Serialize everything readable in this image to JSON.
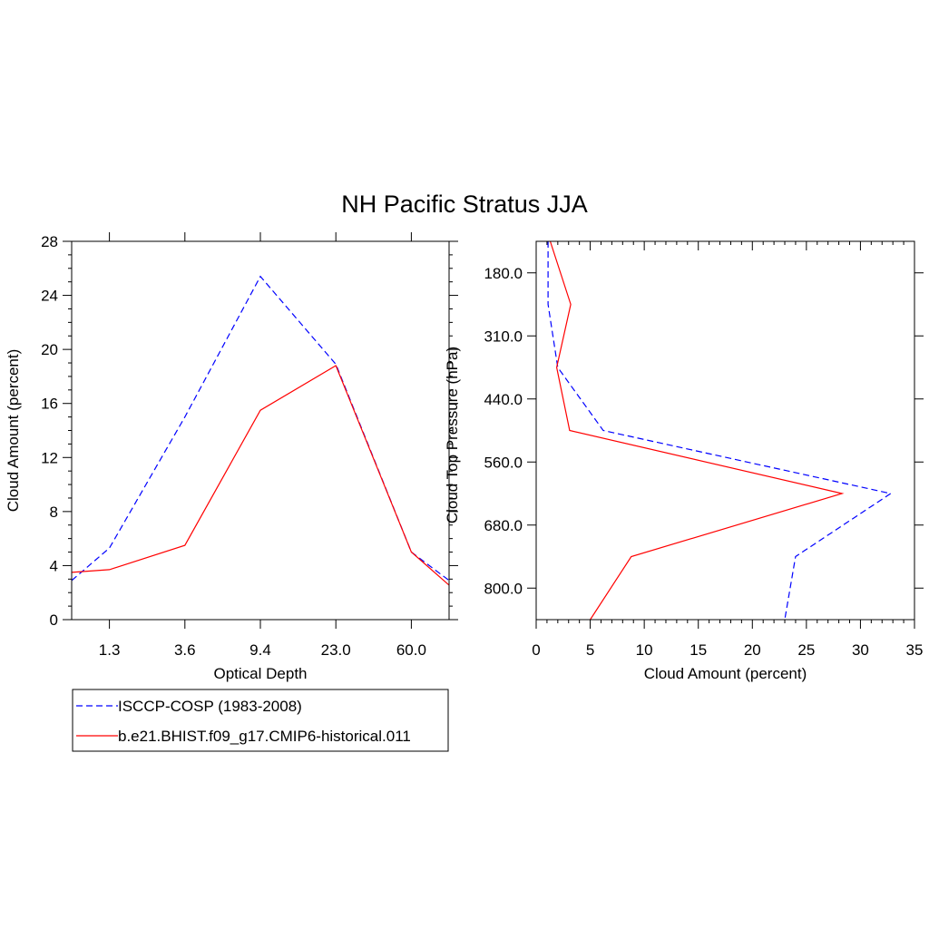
{
  "figure": {
    "title": "NH Pacific Stratus JJA"
  },
  "colors": {
    "obs": "#0000ff",
    "model": "#ff0000",
    "axis": "#000000"
  },
  "legend": {
    "placement": "bottom-left",
    "entries": [
      {
        "label": "ISCCP-COSP (1983-2008)",
        "style": "dashed",
        "color": "#0000ff"
      },
      {
        "label": "b.e21.BHIST.f09_g17.CMIP6-historical.011",
        "style": "solid",
        "color": "#ff0000"
      }
    ]
  },
  "chart_data": [
    {
      "type": "line",
      "title": "",
      "xlabel": "Optical Depth",
      "ylabel": "Cloud Amount (percent)",
      "x_ticklabels": [
        "1.3",
        "3.6",
        "9.4",
        "23.0",
        "60.0"
      ],
      "x_tick_index": [
        1,
        2,
        3,
        4,
        5
      ],
      "x_index": [
        0,
        1,
        2,
        3,
        4,
        5,
        6
      ],
      "xlim_index": [
        0.5,
        5.5
      ],
      "ylim": [
        0,
        28
      ],
      "y_ticks": [
        0,
        4,
        8,
        12,
        16,
        20,
        24,
        28
      ],
      "y_minor_step": 1,
      "series": [
        {
          "name": "ISCCP-COSP (1983-2008)",
          "style": "dashed",
          "values": [
            0.5,
            5.3,
            15.0,
            25.4,
            18.9,
            5.0,
            0.8
          ]
        },
        {
          "name": "b.e21.BHIST.f09_g17.CMIP6-historical.011",
          "style": "solid",
          "values": [
            3.3,
            3.7,
            5.5,
            15.5,
            18.8,
            5.0,
            0.1
          ]
        }
      ]
    },
    {
      "type": "line",
      "title": "",
      "xlabel": "Cloud Amount (percent)",
      "ylabel": "Cloud Top Pressure (hPa)",
      "xlim": [
        0,
        35
      ],
      "x_ticks": [
        0,
        5,
        10,
        15,
        20,
        25,
        30,
        35
      ],
      "x_minor_step": 1,
      "y_ticklabels": [
        "180.0",
        "310.0",
        "440.0",
        "560.0",
        "680.0",
        "800.0"
      ],
      "y_tick_index": [
        1,
        2,
        3,
        4,
        5,
        6
      ],
      "y_index": [
        0.5,
        1.5,
        2.5,
        3.5,
        4.5,
        5.5,
        6.5
      ],
      "ylim_index": [
        0.5,
        6.5
      ],
      "series": [
        {
          "name": "ISCCP-COSP (1983-2008)",
          "style": "dashed",
          "values": [
            1.1,
            1.1,
            2.0,
            6.2,
            32.8,
            24.0,
            23.0
          ]
        },
        {
          "name": "b.e21.BHIST.f09_g17.CMIP6-historical.011",
          "style": "solid",
          "values": [
            1.3,
            3.2,
            1.9,
            3.1,
            28.3,
            8.8,
            5.0
          ]
        }
      ]
    }
  ]
}
